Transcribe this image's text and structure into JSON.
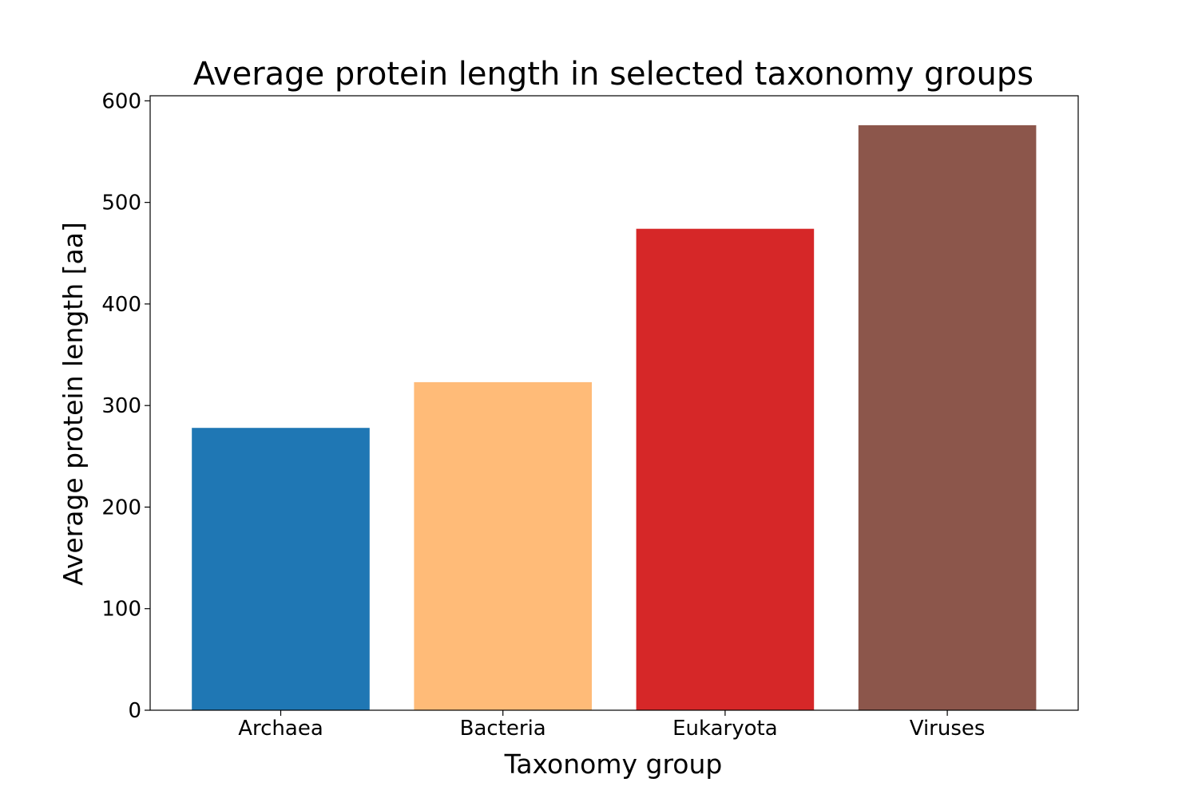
{
  "chart_data": {
    "type": "bar",
    "title": "Average protein length in selected taxonomy groups",
    "xlabel": "Taxonomy group",
    "ylabel": "Average protein length [aa]",
    "categories": [
      "Archaea",
      "Bacteria",
      "Eukaryota",
      "Viruses"
    ],
    "values": [
      278,
      323,
      474,
      576
    ],
    "colors": [
      "#1f77b4",
      "#ffbb78",
      "#d62728",
      "#8c564b"
    ],
    "ylim": [
      0,
      605
    ],
    "yticks": [
      0,
      100,
      200,
      300,
      400,
      500,
      600
    ],
    "grid": false,
    "legend": "none"
  }
}
